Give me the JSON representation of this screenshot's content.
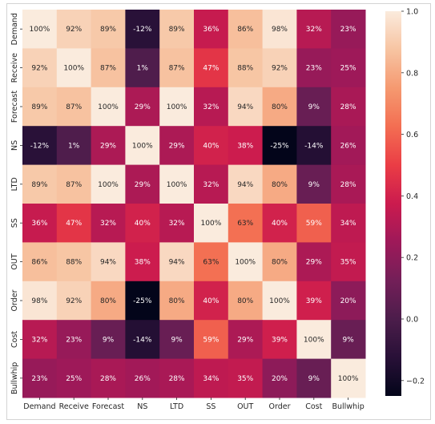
{
  "chart_data": {
    "type": "heatmap",
    "title": "",
    "xlabel": "",
    "ylabel": "",
    "categories": [
      "Demand",
      "Receive",
      "Forecast",
      "NS",
      "LTD",
      "SS",
      "OUT",
      "Order",
      "Cost",
      "Bullwhip"
    ],
    "values": [
      [
        1.0,
        0.92,
        0.89,
        -0.12,
        0.89,
        0.36,
        0.86,
        0.98,
        0.32,
        0.23
      ],
      [
        0.92,
        1.0,
        0.87,
        0.01,
        0.87,
        0.47,
        0.88,
        0.92,
        0.23,
        0.25
      ],
      [
        0.89,
        0.87,
        1.0,
        0.29,
        1.0,
        0.32,
        0.94,
        0.8,
        0.09,
        0.28
      ],
      [
        -0.12,
        0.01,
        0.29,
        1.0,
        0.29,
        0.4,
        0.38,
        -0.25,
        -0.14,
        0.26
      ],
      [
        0.89,
        0.87,
        1.0,
        0.29,
        1.0,
        0.32,
        0.94,
        0.8,
        0.09,
        0.28
      ],
      [
        0.36,
        0.47,
        0.32,
        0.4,
        0.32,
        1.0,
        0.63,
        0.4,
        0.59,
        0.34
      ],
      [
        0.86,
        0.88,
        0.94,
        0.38,
        0.94,
        0.63,
        1.0,
        0.8,
        0.29,
        0.35
      ],
      [
        0.98,
        0.92,
        0.8,
        -0.25,
        0.8,
        0.4,
        0.8,
        1.0,
        0.39,
        0.2
      ],
      [
        0.32,
        0.23,
        0.09,
        -0.14,
        0.09,
        0.59,
        0.29,
        0.39,
        1.0,
        0.09
      ],
      [
        0.23,
        0.25,
        0.28,
        0.26,
        0.28,
        0.34,
        0.35,
        0.2,
        0.09,
        1.0
      ]
    ],
    "annotation_format": "percent",
    "colormap": "rocket",
    "vmin": -0.25,
    "vmax": 1.0,
    "colorbar_ticks": [
      -0.2,
      0.0,
      0.2,
      0.4,
      0.6,
      0.8,
      1.0
    ],
    "colorbar_tick_labels": [
      "−0.2",
      "0.0",
      "0.2",
      "0.4",
      "0.6",
      "0.8",
      "1.0"
    ]
  }
}
